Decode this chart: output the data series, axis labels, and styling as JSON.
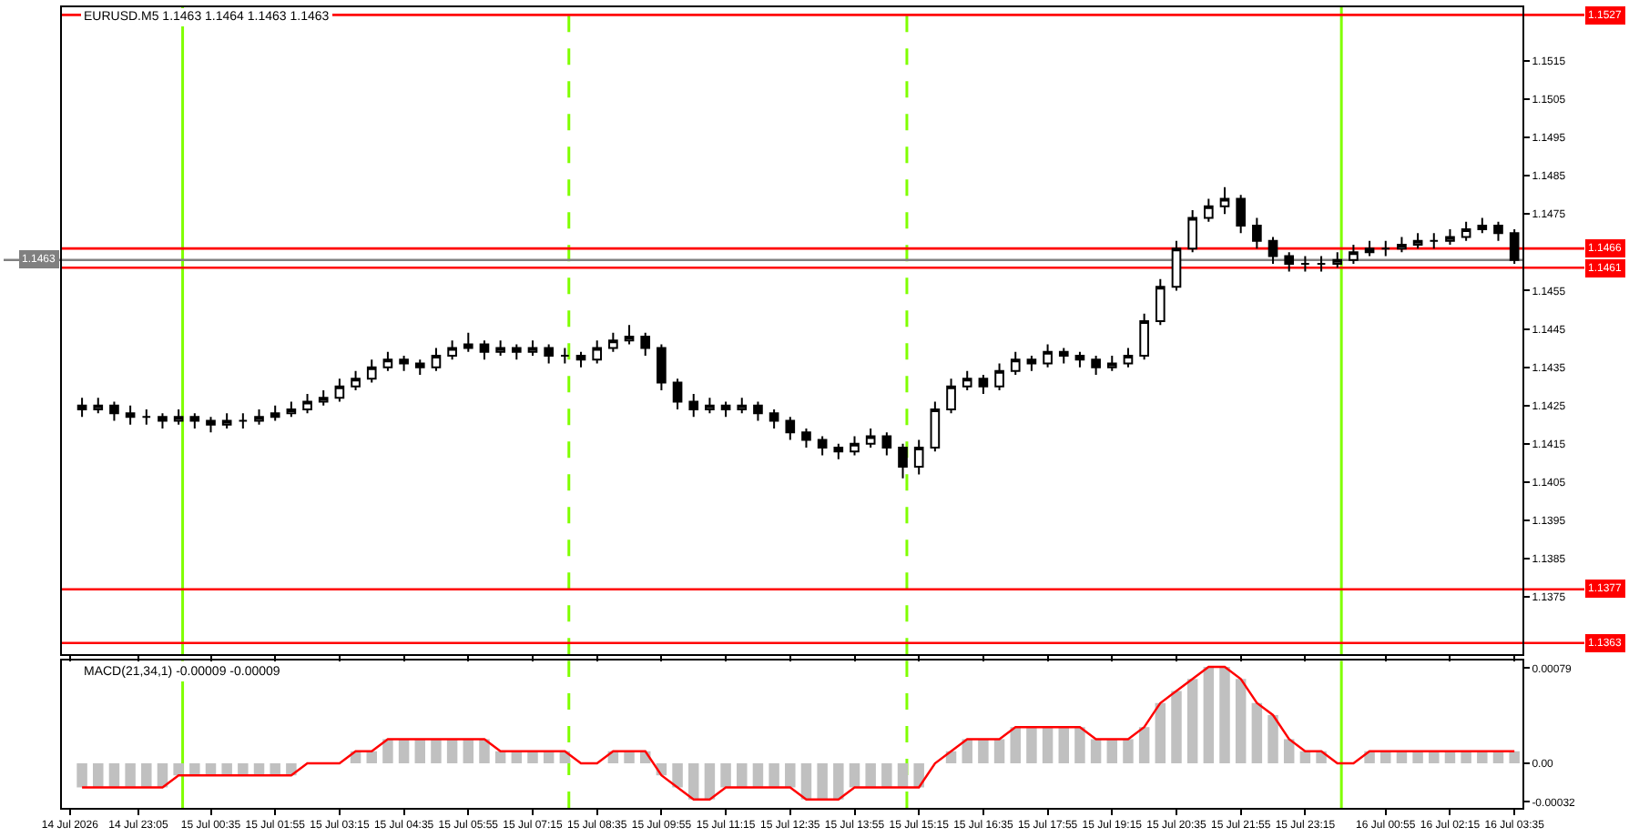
{
  "chart_data": [
    {
      "type": "candlestick",
      "title": "EURUSD.M5 1.1463 1.1464 1.1463 1.1463",
      "color": "#000000",
      "x": [
        "2026-07-14T21:55",
        "2026-07-14T22:15",
        "2026-07-14T22:35",
        "2026-07-14T22:55",
        "2026-07-14T23:15",
        "2026-07-14T23:35",
        "2026-07-14T23:55",
        "2026-07-15T00:15",
        "2026-07-15T00:35",
        "2026-07-15T00:55",
        "2026-07-15T01:15",
        "2026-07-15T01:35",
        "2026-07-15T01:55",
        "2026-07-15T02:15",
        "2026-07-15T02:35",
        "2026-07-15T02:55",
        "2026-07-15T03:15",
        "2026-07-15T03:35",
        "2026-07-15T03:55",
        "2026-07-15T04:15",
        "2026-07-15T04:35",
        "2026-07-15T04:55",
        "2026-07-15T05:15",
        "2026-07-15T05:35",
        "2026-07-15T05:55",
        "2026-07-15T06:15",
        "2026-07-15T06:35",
        "2026-07-15T06:55",
        "2026-07-15T07:15",
        "2026-07-15T07:35",
        "2026-07-15T07:55",
        "2026-07-15T08:15",
        "2026-07-15T08:35",
        "2026-07-15T08:55",
        "2026-07-15T09:15",
        "2026-07-15T09:35",
        "2026-07-15T09:55",
        "2026-07-15T10:15",
        "2026-07-15T10:35",
        "2026-07-15T10:55",
        "2026-07-15T11:15",
        "2026-07-15T11:35",
        "2026-07-15T11:55",
        "2026-07-15T12:15",
        "2026-07-15T12:35",
        "2026-07-15T12:55",
        "2026-07-15T13:15",
        "2026-07-15T13:35",
        "2026-07-15T13:55",
        "2026-07-15T14:15",
        "2026-07-15T14:35",
        "2026-07-15T14:55",
        "2026-07-15T15:15",
        "2026-07-15T15:35",
        "2026-07-15T15:55",
        "2026-07-15T16:15",
        "2026-07-15T16:35",
        "2026-07-15T16:55",
        "2026-07-15T17:15",
        "2026-07-15T17:35",
        "2026-07-15T17:55",
        "2026-07-15T18:15",
        "2026-07-15T18:35",
        "2026-07-15T18:55",
        "2026-07-15T19:15",
        "2026-07-15T19:35",
        "2026-07-15T19:55",
        "2026-07-15T20:15",
        "2026-07-15T20:35",
        "2026-07-15T20:55",
        "2026-07-15T21:15",
        "2026-07-15T21:35",
        "2026-07-15T21:55",
        "2026-07-15T22:15",
        "2026-07-15T22:35",
        "2026-07-15T22:55",
        "2026-07-15T23:15",
        "2026-07-15T23:35",
        "2026-07-15T23:55",
        "2026-07-16T00:15",
        "2026-07-16T00:35",
        "2026-07-16T00:55",
        "2026-07-16T01:15",
        "2026-07-16T01:35",
        "2026-07-16T01:55",
        "2026-07-16T02:15",
        "2026-07-16T02:35",
        "2026-07-16T02:55",
        "2026-07-16T03:15",
        "2026-07-16T03:35"
      ],
      "ohlc": [
        [
          1.1425,
          1.1427,
          1.1422,
          1.1424
        ],
        [
          1.1424,
          1.1427,
          1.1423,
          1.1425
        ],
        [
          1.1425,
          1.1426,
          1.1421,
          1.1423
        ],
        [
          1.1423,
          1.1425,
          1.142,
          1.1422
        ],
        [
          1.1422,
          1.1424,
          1.142,
          1.1422
        ],
        [
          1.1422,
          1.1423,
          1.1419,
          1.1421
        ],
        [
          1.1421,
          1.1424,
          1.142,
          1.1422
        ],
        [
          1.1422,
          1.1423,
          1.1419,
          1.1421
        ],
        [
          1.1421,
          1.1422,
          1.1418,
          1.142
        ],
        [
          1.142,
          1.1423,
          1.1419,
          1.1421
        ],
        [
          1.1421,
          1.1423,
          1.1419,
          1.1421
        ],
        [
          1.1421,
          1.1424,
          1.142,
          1.1422
        ],
        [
          1.1422,
          1.1425,
          1.1421,
          1.1423
        ],
        [
          1.1423,
          1.1426,
          1.1422,
          1.1424
        ],
        [
          1.1424,
          1.1428,
          1.1423,
          1.1426
        ],
        [
          1.1426,
          1.1429,
          1.1425,
          1.1427
        ],
        [
          1.1427,
          1.1432,
          1.1426,
          1.143
        ],
        [
          1.143,
          1.1434,
          1.1429,
          1.1432
        ],
        [
          1.1432,
          1.1437,
          1.1431,
          1.1435
        ],
        [
          1.1435,
          1.1439,
          1.1434,
          1.1437
        ],
        [
          1.1437,
          1.1438,
          1.1434,
          1.1436
        ],
        [
          1.1436,
          1.1437,
          1.1433,
          1.1435
        ],
        [
          1.1435,
          1.144,
          1.1434,
          1.1438
        ],
        [
          1.1438,
          1.1442,
          1.1437,
          1.144
        ],
        [
          1.144,
          1.1444,
          1.1439,
          1.1441
        ],
        [
          1.1441,
          1.1442,
          1.1437,
          1.1439
        ],
        [
          1.1439,
          1.1442,
          1.1438,
          1.144
        ],
        [
          1.144,
          1.1441,
          1.1437,
          1.1439
        ],
        [
          1.1439,
          1.1442,
          1.1438,
          1.144
        ],
        [
          1.144,
          1.1441,
          1.1436,
          1.1438
        ],
        [
          1.1438,
          1.144,
          1.1436,
          1.1438
        ],
        [
          1.1438,
          1.1439,
          1.1435,
          1.1437
        ],
        [
          1.1437,
          1.1442,
          1.1436,
          1.144
        ],
        [
          1.144,
          1.1444,
          1.1439,
          1.1442
        ],
        [
          1.1442,
          1.1446,
          1.1441,
          1.1443
        ],
        [
          1.1443,
          1.1444,
          1.1438,
          1.144
        ],
        [
          1.144,
          1.1441,
          1.1429,
          1.1431
        ],
        [
          1.1431,
          1.1432,
          1.1424,
          1.1426
        ],
        [
          1.1426,
          1.1428,
          1.1422,
          1.1424
        ],
        [
          1.1424,
          1.1427,
          1.1423,
          1.1425
        ],
        [
          1.1425,
          1.1426,
          1.1422,
          1.1424
        ],
        [
          1.1424,
          1.1427,
          1.1423,
          1.1425
        ],
        [
          1.1425,
          1.1426,
          1.1421,
          1.1423
        ],
        [
          1.1423,
          1.1424,
          1.1419,
          1.1421
        ],
        [
          1.1421,
          1.1422,
          1.1416,
          1.1418
        ],
        [
          1.1418,
          1.1419,
          1.1414,
          1.1416
        ],
        [
          1.1416,
          1.1417,
          1.1412,
          1.1414
        ],
        [
          1.1414,
          1.1415,
          1.1411,
          1.1413
        ],
        [
          1.1413,
          1.1417,
          1.1412,
          1.1415
        ],
        [
          1.1415,
          1.1419,
          1.1414,
          1.1417
        ],
        [
          1.1417,
          1.1418,
          1.1412,
          1.1414
        ],
        [
          1.1414,
          1.1415,
          1.1406,
          1.1409
        ],
        [
          1.1409,
          1.1416,
          1.1407,
          1.1414
        ],
        [
          1.1414,
          1.1426,
          1.1413,
          1.1424
        ],
        [
          1.1424,
          1.1432,
          1.1423,
          1.143
        ],
        [
          1.143,
          1.1434,
          1.1429,
          1.1432
        ],
        [
          1.1432,
          1.1433,
          1.1428,
          1.143
        ],
        [
          1.143,
          1.1436,
          1.1429,
          1.1434
        ],
        [
          1.1434,
          1.1439,
          1.1433,
          1.1437
        ],
        [
          1.1437,
          1.1438,
          1.1434,
          1.1436
        ],
        [
          1.1436,
          1.1441,
          1.1435,
          1.1439
        ],
        [
          1.1439,
          1.144,
          1.1436,
          1.1438
        ],
        [
          1.1438,
          1.1439,
          1.1435,
          1.1437
        ],
        [
          1.1437,
          1.1438,
          1.1433,
          1.1435
        ],
        [
          1.1435,
          1.1438,
          1.1434,
          1.1436
        ],
        [
          1.1436,
          1.144,
          1.1435,
          1.1438
        ],
        [
          1.1438,
          1.1449,
          1.1437,
          1.1447
        ],
        [
          1.1447,
          1.1458,
          1.1446,
          1.1456
        ],
        [
          1.1456,
          1.1468,
          1.1455,
          1.1466
        ],
        [
          1.1466,
          1.1476,
          1.1465,
          1.1474
        ],
        [
          1.1474,
          1.1479,
          1.1473,
          1.1477
        ],
        [
          1.1477,
          1.1482,
          1.1475,
          1.1479
        ],
        [
          1.1479,
          1.148,
          1.147,
          1.1472
        ],
        [
          1.1472,
          1.1474,
          1.1466,
          1.1468
        ],
        [
          1.1468,
          1.1469,
          1.1462,
          1.1464
        ],
        [
          1.1464,
          1.1465,
          1.146,
          1.1462
        ],
        [
          1.1462,
          1.1464,
          1.146,
          1.1462
        ],
        [
          1.1462,
          1.1464,
          1.146,
          1.1462
        ],
        [
          1.1462,
          1.1465,
          1.1461,
          1.1463
        ],
        [
          1.1463,
          1.1467,
          1.1462,
          1.1465
        ],
        [
          1.1465,
          1.1468,
          1.1464,
          1.1466
        ],
        [
          1.1466,
          1.1468,
          1.1464,
          1.1466
        ],
        [
          1.1466,
          1.1469,
          1.1465,
          1.1467
        ],
        [
          1.1467,
          1.147,
          1.1466,
          1.1468
        ],
        [
          1.1468,
          1.147,
          1.1466,
          1.1468
        ],
        [
          1.1468,
          1.1471,
          1.1467,
          1.1469
        ],
        [
          1.1469,
          1.1473,
          1.1468,
          1.1471
        ],
        [
          1.1471,
          1.1474,
          1.147,
          1.1472
        ],
        [
          1.1472,
          1.1473,
          1.1468,
          1.147
        ],
        [
          1.147,
          1.1471,
          1.1462,
          1.1463
        ]
      ],
      "xlim": [
        "2026-07-14T21:30",
        "2026-07-16T03:45"
      ],
      "xticks": [
        {
          "value": "2026-07-14T21:40",
          "label": null
        },
        {
          "value": "2026-07-14T23:05",
          "label": null
        },
        {
          "value": "2026-07-15T00:35",
          "label": null
        },
        {
          "value": "2026-07-15T01:55",
          "label": null
        },
        {
          "value": "2026-07-15T03:15",
          "label": null
        },
        {
          "value": "2026-07-15T04:35",
          "label": null
        },
        {
          "value": "2026-07-15T05:55",
          "label": null
        },
        {
          "value": "2026-07-15T07:15",
          "label": null
        },
        {
          "value": "2026-07-15T08:35",
          "label": null
        },
        {
          "value": "2026-07-15T09:55",
          "label": null
        },
        {
          "value": "2026-07-15T11:15",
          "label": null
        },
        {
          "value": "2026-07-15T12:35",
          "label": null
        },
        {
          "value": "2026-07-15T13:55",
          "label": null
        },
        {
          "value": "2026-07-15T15:15",
          "label": null
        },
        {
          "value": "2026-07-15T16:35",
          "label": null
        },
        {
          "value": "2026-07-15T17:55",
          "label": null
        },
        {
          "value": "2026-07-15T19:15",
          "label": null
        },
        {
          "value": "2026-07-15T20:35",
          "label": null
        },
        {
          "value": "2026-07-15T21:55",
          "label": null
        },
        {
          "value": "2026-07-15T23:15",
          "label": null
        },
        {
          "value": "2026-07-16T00:55",
          "label": null
        },
        {
          "value": "2026-07-16T02:15",
          "label": null
        },
        {
          "value": "2026-07-16T03:35",
          "label": null
        }
      ],
      "ylim": [
        1.136,
        1.1529
      ],
      "yticks": [
        1.1375,
        1.1385,
        1.1395,
        1.1405,
        1.1415,
        1.1425,
        1.1435,
        1.1445,
        1.1455,
        1.1475,
        1.1485,
        1.1495,
        1.1505,
        1.1515
      ],
      "tick_labels": "y",
      "ref_lines": [
        {
          "axis": "x",
          "value": "2026-07-15T00:00",
          "color": "#80ff00",
          "line_style": "solid"
        },
        {
          "axis": "x",
          "value": "2026-07-15T08:00",
          "color": "#80ff00",
          "line_style": "dashed"
        },
        {
          "axis": "x",
          "value": "2026-07-15T15:00",
          "color": "#80ff00",
          "line_style": "dashed"
        },
        {
          "axis": "x",
          "value": "2026-07-16T00:00",
          "color": "#80ff00",
          "line_style": "solid"
        },
        {
          "axis": "y",
          "value": 1.1527,
          "label": "1.1527",
          "color": "#ff0000"
        },
        {
          "axis": "y",
          "value": 1.1466,
          "label": "1.1466",
          "color": "#ff0000"
        },
        {
          "axis": "y",
          "value": 1.1463,
          "label": "1.1463",
          "color": "#808080"
        },
        {
          "axis": "y",
          "value": 1.1461,
          "label": "1.1461",
          "color": "#ff0000"
        },
        {
          "axis": "y",
          "value": 1.1377,
          "label": "1.1377",
          "color": "#ff0000"
        },
        {
          "axis": "y",
          "value": 1.1363,
          "label": "1.1363",
          "color": "#ff0000"
        }
      ]
    },
    {
      "type": "bar",
      "title": "MACD(21,34,1) -0.00009 -0.00009",
      "x": [
        "2026-07-14T21:55",
        "2026-07-14T22:15",
        "2026-07-14T22:35",
        "2026-07-14T22:55",
        "2026-07-14T23:15",
        "2026-07-14T23:35",
        "2026-07-14T23:55",
        "2026-07-15T00:15",
        "2026-07-15T00:35",
        "2026-07-15T00:55",
        "2026-07-15T01:15",
        "2026-07-15T01:35",
        "2026-07-15T01:55",
        "2026-07-15T02:15",
        "2026-07-15T02:35",
        "2026-07-15T02:55",
        "2026-07-15T03:15",
        "2026-07-15T03:35",
        "2026-07-15T03:55",
        "2026-07-15T04:15",
        "2026-07-15T04:35",
        "2026-07-15T04:55",
        "2026-07-15T05:15",
        "2026-07-15T05:35",
        "2026-07-15T05:55",
        "2026-07-15T06:15",
        "2026-07-15T06:35",
        "2026-07-15T06:55",
        "2026-07-15T07:15",
        "2026-07-15T07:35",
        "2026-07-15T07:55",
        "2026-07-15T08:15",
        "2026-07-15T08:35",
        "2026-07-15T08:55",
        "2026-07-15T09:15",
        "2026-07-15T09:35",
        "2026-07-15T09:55",
        "2026-07-15T10:15",
        "2026-07-15T10:35",
        "2026-07-15T10:55",
        "2026-07-15T11:15",
        "2026-07-15T11:35",
        "2026-07-15T11:55",
        "2026-07-15T12:15",
        "2026-07-15T12:35",
        "2026-07-15T12:55",
        "2026-07-15T13:15",
        "2026-07-15T13:35",
        "2026-07-15T13:55",
        "2026-07-15T14:15",
        "2026-07-15T14:35",
        "2026-07-15T14:55",
        "2026-07-15T15:15",
        "2026-07-15T15:35",
        "2026-07-15T15:55",
        "2026-07-15T16:15",
        "2026-07-15T16:35",
        "2026-07-15T16:55",
        "2026-07-15T17:15",
        "2026-07-15T17:35",
        "2026-07-15T17:55",
        "2026-07-15T18:15",
        "2026-07-15T18:35",
        "2026-07-15T18:55",
        "2026-07-15T19:15",
        "2026-07-15T19:35",
        "2026-07-15T19:55",
        "2026-07-15T20:15",
        "2026-07-15T20:35",
        "2026-07-15T20:55",
        "2026-07-15T21:15",
        "2026-07-15T21:35",
        "2026-07-15T21:55",
        "2026-07-15T22:15",
        "2026-07-15T22:35",
        "2026-07-15T22:55",
        "2026-07-15T23:15",
        "2026-07-15T23:35",
        "2026-07-15T23:55",
        "2026-07-16T00:15",
        "2026-07-16T00:35",
        "2026-07-16T00:55",
        "2026-07-16T01:15",
        "2026-07-16T01:35",
        "2026-07-16T01:55",
        "2026-07-16T02:15",
        "2026-07-16T02:35",
        "2026-07-16T02:55",
        "2026-07-16T03:15",
        "2026-07-16T03:35"
      ],
      "series": [
        {
          "type": "bar",
          "color": "#c0c0c0",
          "values": [
            -0.0002,
            -0.0002,
            -0.0002,
            -0.0002,
            -0.0002,
            -0.0002,
            -0.0001,
            -0.0001,
            -0.0001,
            -0.0001,
            -0.0001,
            -0.0001,
            -0.0001,
            -0.0001,
            0,
            0,
            0,
            0.0001,
            0.0001,
            0.0002,
            0.0002,
            0.0002,
            0.0002,
            0.0002,
            0.0002,
            0.0002,
            0.0001,
            0.0001,
            0.0001,
            0.0001,
            0.0001,
            0,
            0,
            0.0001,
            0.0001,
            0.0001,
            -0.0001,
            -0.0002,
            -0.0003,
            -0.0003,
            -0.0002,
            -0.0002,
            -0.0002,
            -0.0002,
            -0.0002,
            -0.0003,
            -0.0003,
            -0.0003,
            -0.0002,
            -0.0002,
            -0.0002,
            -0.0002,
            -0.0002,
            0,
            0.0001,
            0.0002,
            0.0002,
            0.0002,
            0.0003,
            0.0003,
            0.0003,
            0.0003,
            0.0003,
            0.0002,
            0.0002,
            0.0002,
            0.0003,
            0.0005,
            0.0006,
            0.0007,
            0.0008,
            0.0008,
            0.0007,
            0.0005,
            0.0004,
            0.0002,
            0.0001,
            0.0001,
            0,
            0,
            0.0001,
            0.0001,
            0.0001,
            0.0001,
            0.0001,
            0.0001,
            0.0001,
            0.0001,
            0.0001,
            0.0001
          ]
        },
        {
          "type": "line",
          "color": "#ff0000",
          "values": [
            -0.0002,
            -0.0002,
            -0.0002,
            -0.0002,
            -0.0002,
            -0.0002,
            -0.0001,
            -0.0001,
            -0.0001,
            -0.0001,
            -0.0001,
            -0.0001,
            -0.0001,
            -0.0001,
            0,
            0,
            0,
            0.0001,
            0.0001,
            0.0002,
            0.0002,
            0.0002,
            0.0002,
            0.0002,
            0.0002,
            0.0002,
            0.0001,
            0.0001,
            0.0001,
            0.0001,
            0.0001,
            0,
            0,
            0.0001,
            0.0001,
            0.0001,
            -0.0001,
            -0.0002,
            -0.0003,
            -0.0003,
            -0.0002,
            -0.0002,
            -0.0002,
            -0.0002,
            -0.0002,
            -0.0003,
            -0.0003,
            -0.0003,
            -0.0002,
            -0.0002,
            -0.0002,
            -0.0002,
            -0.0002,
            0,
            0.0001,
            0.0002,
            0.0002,
            0.0002,
            0.0003,
            0.0003,
            0.0003,
            0.0003,
            0.0003,
            0.0002,
            0.0002,
            0.0002,
            0.0003,
            0.0005,
            0.0006,
            0.0007,
            0.0008,
            0.0008,
            0.0007,
            0.0005,
            0.0004,
            0.0002,
            0.0001,
            0.0001,
            0,
            0,
            0.0001,
            0.0001,
            0.0001,
            0.0001,
            0.0001,
            0.0001,
            0.0001,
            0.0001,
            0.0001,
            0.0001
          ]
        }
      ],
      "xlim": [
        "2026-07-14T21:30",
        "2026-07-16T03:45"
      ],
      "xticks": [
        {
          "value": "2026-07-14T21:40",
          "label": "14 Jul 2026"
        },
        {
          "value": "2026-07-14T23:05",
          "label": "14 Jul 23:05"
        },
        {
          "value": "2026-07-15T00:35",
          "label": "15 Jul 00:35"
        },
        {
          "value": "2026-07-15T01:55",
          "label": "15 Jul 01:55"
        },
        {
          "value": "2026-07-15T03:15",
          "label": "15 Jul 03:15"
        },
        {
          "value": "2026-07-15T04:35",
          "label": "15 Jul 04:35"
        },
        {
          "value": "2026-07-15T05:55",
          "label": "15 Jul 05:55"
        },
        {
          "value": "2026-07-15T07:15",
          "label": "15 Jul 07:15"
        },
        {
          "value": "2026-07-15T08:35",
          "label": "15 Jul 08:35"
        },
        {
          "value": "2026-07-15T09:55",
          "label": "15 Jul 09:55"
        },
        {
          "value": "2026-07-15T11:15",
          "label": "15 Jul 11:15"
        },
        {
          "value": "2026-07-15T12:35",
          "label": "15 Jul 12:35"
        },
        {
          "value": "2026-07-15T13:55",
          "label": "15 Jul 13:55"
        },
        {
          "value": "2026-07-15T15:15",
          "label": "15 Jul 15:15"
        },
        {
          "value": "2026-07-15T16:35",
          "label": "15 Jul 16:35"
        },
        {
          "value": "2026-07-15T17:55",
          "label": "15 Jul 17:55"
        },
        {
          "value": "2026-07-15T19:15",
          "label": "15 Jul 19:15"
        },
        {
          "value": "2026-07-15T20:35",
          "label": "15 Jul 20:35"
        },
        {
          "value": "2026-07-15T21:55",
          "label": "15 Jul 21:55"
        },
        {
          "value": "2026-07-15T23:15",
          "label": "15 Jul 23:15"
        },
        {
          "value": "2026-07-16T00:55",
          "label": "16 Jul 00:55"
        },
        {
          "value": "2026-07-16T02:15",
          "label": "16 Jul 02:15"
        },
        {
          "value": "2026-07-16T03:35",
          "label": "16 Jul 03:35"
        }
      ],
      "ylim": [
        -0.00037,
        0.00085
      ],
      "yticks": [
        0.00079,
        {
          "value": 0,
          "label": "0.00"
        },
        -0.00032
      ],
      "ref_lines": [
        {
          "axis": "x",
          "value": "2026-07-15T00:00",
          "color": "#80ff00",
          "line_style": "solid"
        },
        {
          "axis": "x",
          "value": "2026-07-15T08:00",
          "color": "#80ff00",
          "line_style": "dashed"
        },
        {
          "axis": "x",
          "value": "2026-07-15T15:00",
          "color": "#80ff00",
          "line_style": "dashed"
        },
        {
          "axis": "x",
          "value": "2026-07-16T00:00",
          "color": "#80ff00",
          "line_style": "solid"
        }
      ]
    }
  ]
}
